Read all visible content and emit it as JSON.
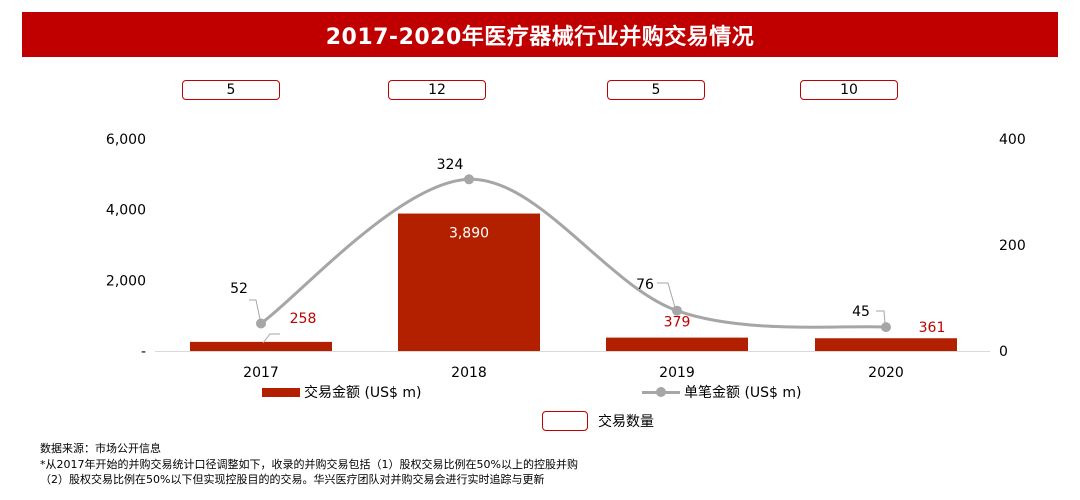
{
  "title": "2017-2020年医疗器械行业并购交易情况",
  "counts": [
    "5",
    "12",
    "5",
    "10"
  ],
  "colors": {
    "title_bg": "#c00000",
    "bar": "#b22000",
    "line": "#a6a6a6",
    "bar_label_outside": "#c00000",
    "bar_label_inside": "#ffffff",
    "count_border": "#c00000"
  },
  "legend": {
    "bar_label": "交易金额 (US$ m)",
    "line_label": "单笔金额 (US$ m)",
    "count_label": "交易数量"
  },
  "footnotes": {
    "source": "数据来源：市场公开信息",
    "note1": "*从2017年开始的并购交易统计口径调整如下，收录的并购交易包括（1）股权交易比例在50%以上的控股并购",
    "note2": "（2）股权交易比例在50%以下但实现控股目的的交易。华兴医疗团队对并购交易会进行实时追踪与更新"
  },
  "chart_data": {
    "type": "bar",
    "categories": [
      "2017",
      "2018",
      "2019",
      "2020"
    ],
    "series": [
      {
        "name": "交易金额 (US$ m)",
        "type": "bar",
        "axis": "left",
        "values": [
          258,
          3890,
          379,
          361
        ],
        "labels": [
          "258",
          "3,890",
          "379",
          "361"
        ]
      },
      {
        "name": "单笔金额 (US$ m)",
        "type": "line",
        "axis": "right",
        "values": [
          52,
          324,
          76,
          45
        ],
        "labels": [
          "52",
          "324",
          "76",
          "45"
        ]
      }
    ],
    "left_axis": {
      "ylim": [
        0,
        6000
      ],
      "ticks": [
        0,
        2000,
        4000,
        6000
      ],
      "tick_labels": [
        "-",
        "2,000",
        "4,000",
        "6,000"
      ]
    },
    "right_axis": {
      "ylim": [
        0,
        400
      ],
      "ticks": [
        0,
        200,
        400
      ],
      "tick_labels": [
        "0",
        "200",
        "400"
      ]
    },
    "legend_position": "bottom",
    "grid": false
  }
}
